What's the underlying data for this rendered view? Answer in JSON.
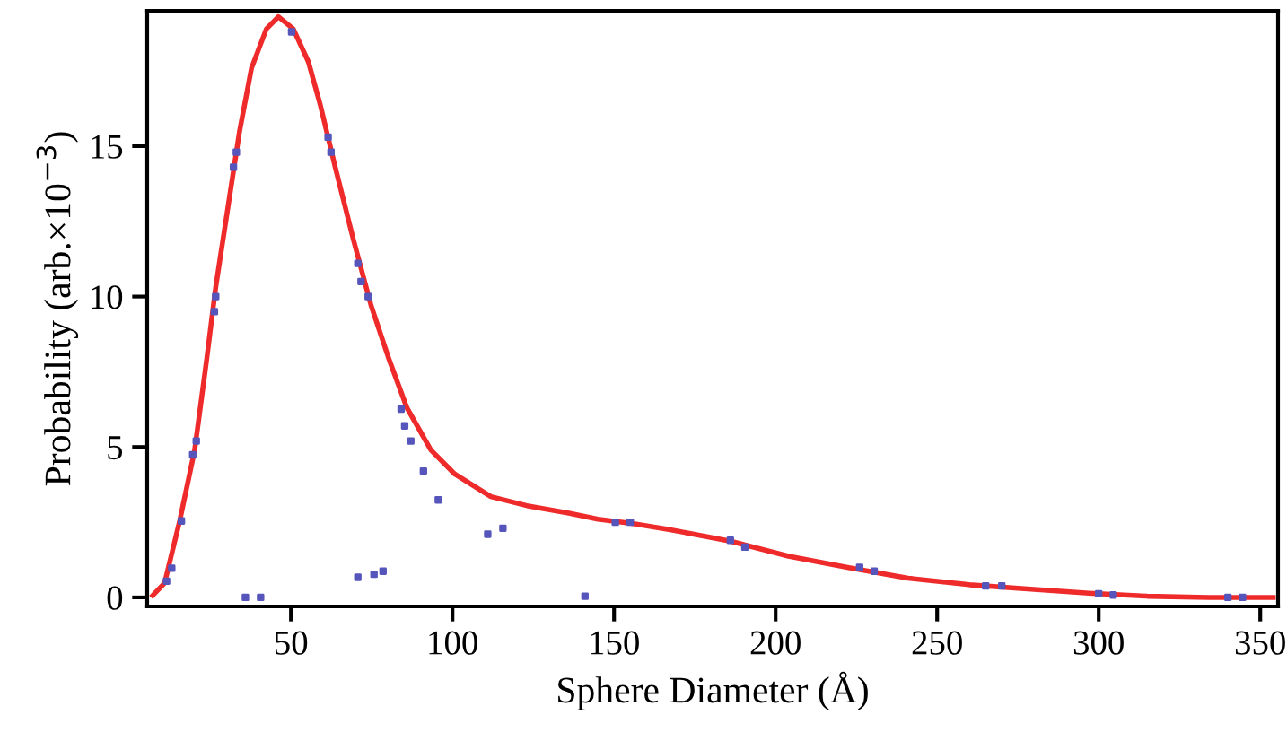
{
  "chart_data": {
    "type": "line",
    "xlabel": "Sphere Diameter (Å)",
    "ylabel": "Probability (arb.×10$^{−3}$)",
    "xlim": [
      5.5,
      355.5
    ],
    "ylim": [
      -0.3,
      19.5
    ],
    "xticks": [
      50,
      100,
      150,
      200,
      250,
      300,
      350
    ],
    "yticks": [
      0,
      5,
      10,
      15
    ],
    "grid": false,
    "legend": false,
    "series": [
      {
        "color": "#ee2a2a",
        "marker": "none",
        "line_style": "solid",
        "x": [
          7.2,
          10.9,
          15.6,
          20.2,
          23.9,
          26.7,
          30.4,
          34.1,
          37.8,
          42.4,
          46.1,
          50.7,
          55.4,
          59,
          63.7,
          69.3,
          74.8,
          80.4,
          85.9,
          93.3,
          100.7,
          111.9,
          123,
          136,
          145,
          156,
          167,
          186,
          204,
          223,
          241,
          260,
          278,
          297,
          315,
          334,
          354
        ],
        "values": [
          0.06,
          0.48,
          2.56,
          4.9,
          7.9,
          10.3,
          12.9,
          15.5,
          17.6,
          18.9,
          19.3,
          18.9,
          17.8,
          16.4,
          14.3,
          11.9,
          9.7,
          7.9,
          6.3,
          4.9,
          4.1,
          3.35,
          3.05,
          2.8,
          2.6,
          2.45,
          2.26,
          1.87,
          1.37,
          0.98,
          0.64,
          0.42,
          0.28,
          0.14,
          0.04,
          0,
          0
        ]
      },
      {
        "type": "scatter",
        "color": "#5555bb",
        "marker": "square",
        "x": [
          11.5,
          13.1,
          16.1,
          19.6,
          20.7,
          26.3,
          26.7,
          32.2,
          33.1,
          35.9,
          40.6,
          50.2,
          61.5,
          62.4,
          70.7,
          71.7,
          73.9,
          70.7,
          75.7,
          78.5,
          84.1,
          85.2,
          87.1,
          91,
          95.6,
          110.9,
          115.6,
          141,
          150.4,
          155,
          186,
          190.5,
          226,
          230.5,
          265,
          270,
          300,
          304.5,
          340,
          344.5
        ],
        "values": [
          0.54,
          0.97,
          2.54,
          4.74,
          5.2,
          9.5,
          10.0,
          14.3,
          14.8,
          0,
          0,
          18.8,
          15.3,
          14.8,
          11.1,
          10.5,
          10.0,
          0.67,
          0.77,
          0.87,
          6.26,
          5.7,
          5.2,
          4.2,
          3.24,
          2.1,
          2.3,
          0.04,
          2.5,
          2.5,
          1.9,
          1.67,
          1.0,
          0.87,
          0.38,
          0.38,
          0.12,
          0.08,
          0,
          0
        ]
      }
    ]
  }
}
